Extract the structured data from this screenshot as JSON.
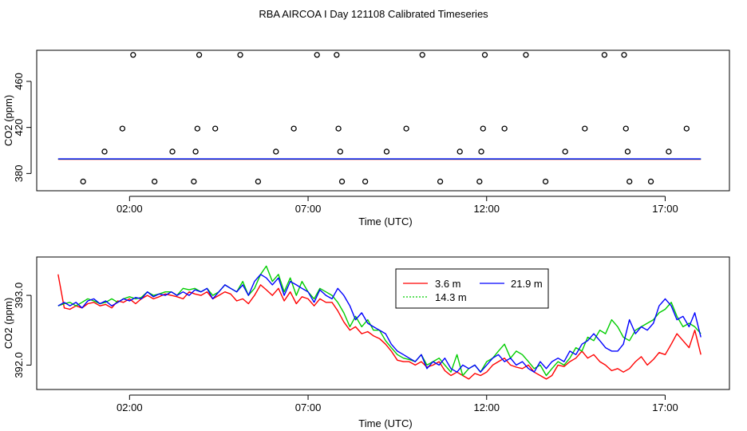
{
  "figure": {
    "title": "RBA AIRCOA I  Day 121108  Calibrated Timeseries"
  },
  "chart_data": [
    {
      "type": "scatter+line",
      "panel": "top",
      "xlabel": "Time (UTC)",
      "ylabel": "CO2 (ppm)",
      "x_unit": "hours UTC",
      "xlim": [
        -0.6,
        18.8
      ],
      "ylim": [
        365,
        487
      ],
      "xticks": [
        2,
        7,
        12,
        17
      ],
      "xtick_labels": [
        "02:00",
        "07:00",
        "12:00",
        "17:00"
      ],
      "yticks": [
        380,
        420,
        460
      ],
      "ytick_labels": [
        "380",
        "420",
        "460"
      ],
      "points": [
        [
          0.7,
          373
        ],
        [
          1.3,
          399
        ],
        [
          1.8,
          419
        ],
        [
          2.1,
          483
        ],
        [
          2.7,
          373
        ],
        [
          3.2,
          399
        ],
        [
          3.8,
          373
        ],
        [
          3.85,
          399
        ],
        [
          3.9,
          419
        ],
        [
          3.95,
          483
        ],
        [
          4.4,
          419
        ],
        [
          5.1,
          483
        ],
        [
          5.6,
          373
        ],
        [
          6.1,
          399
        ],
        [
          6.6,
          419
        ],
        [
          7.25,
          483
        ],
        [
          7.8,
          483
        ],
        [
          7.85,
          419
        ],
        [
          7.9,
          399
        ],
        [
          7.95,
          373
        ],
        [
          8.6,
          373
        ],
        [
          9.2,
          399
        ],
        [
          9.75,
          419
        ],
        [
          10.2,
          483
        ],
        [
          10.7,
          373
        ],
        [
          11.25,
          399
        ],
        [
          11.8,
          373
        ],
        [
          11.85,
          399
        ],
        [
          11.9,
          419
        ],
        [
          11.95,
          483
        ],
        [
          12.5,
          419
        ],
        [
          13.1,
          483
        ],
        [
          13.65,
          373
        ],
        [
          14.2,
          399
        ],
        [
          14.75,
          419
        ],
        [
          15.3,
          483
        ],
        [
          15.85,
          483
        ],
        [
          15.9,
          419
        ],
        [
          15.95,
          399
        ],
        [
          16.0,
          373
        ],
        [
          16.6,
          373
        ],
        [
          17.1,
          399
        ],
        [
          17.6,
          419
        ]
      ],
      "baseline_level": 392.5,
      "series": [
        {
          "name": "3.6 m",
          "color": "#ff0000"
        },
        {
          "name": "14.3 m",
          "color": "#00cd00"
        },
        {
          "name": "21.9 m",
          "color": "#0000ff"
        }
      ]
    },
    {
      "type": "line",
      "panel": "bottom",
      "xlabel": "Time (UTC)",
      "ylabel": "CO2 (ppm)",
      "x_unit": "hours UTC",
      "xlim": [
        -0.6,
        18.8
      ],
      "ylim": [
        391.65,
        393.55
      ],
      "xticks": [
        2,
        7,
        12,
        17
      ],
      "xtick_labels": [
        "02:00",
        "07:00",
        "12:00",
        "17:00"
      ],
      "yticks": [
        392.0,
        393.0
      ],
      "ytick_labels": [
        "392.0",
        "393.0"
      ],
      "legend": {
        "position": "top-center",
        "entries": [
          "3.6 m",
          "21.9 m",
          "14.3 m"
        ]
      },
      "x": [
        0.0,
        0.17,
        0.33,
        0.5,
        0.67,
        0.83,
        1.0,
        1.17,
        1.33,
        1.5,
        1.67,
        1.83,
        2.0,
        2.17,
        2.33,
        2.5,
        2.67,
        2.83,
        3.0,
        3.17,
        3.33,
        3.5,
        3.67,
        3.83,
        4.0,
        4.17,
        4.33,
        4.5,
        4.67,
        4.83,
        5.0,
        5.17,
        5.33,
        5.5,
        5.67,
        5.83,
        6.0,
        6.17,
        6.33,
        6.5,
        6.67,
        6.83,
        7.0,
        7.17,
        7.33,
        7.5,
        7.67,
        7.83,
        8.0,
        8.17,
        8.33,
        8.5,
        8.67,
        8.83,
        9.0,
        9.17,
        9.33,
        9.5,
        9.67,
        9.83,
        10.0,
        10.17,
        10.33,
        10.5,
        10.67,
        10.83,
        11.0,
        11.17,
        11.33,
        11.5,
        11.67,
        11.83,
        12.0,
        12.17,
        12.33,
        12.5,
        12.67,
        12.83,
        13.0,
        13.17,
        13.33,
        13.5,
        13.67,
        13.83,
        14.0,
        14.17,
        14.33,
        14.5,
        14.67,
        14.83,
        15.0,
        15.17,
        15.33,
        15.5,
        15.67,
        15.83,
        16.0,
        16.17,
        16.33,
        16.5,
        16.67,
        16.83,
        17.0,
        17.17,
        17.33,
        17.5,
        17.67,
        17.83,
        18.0
      ],
      "series": [
        {
          "name": "3.6 m",
          "color": "#ff0000",
          "values": [
            393.3,
            392.82,
            392.8,
            392.85,
            392.82,
            392.88,
            392.9,
            392.85,
            392.87,
            392.82,
            392.92,
            392.9,
            392.95,
            392.88,
            392.95,
            393.0,
            392.95,
            392.98,
            393.02,
            393.0,
            392.98,
            392.95,
            393.05,
            393.02,
            393.0,
            393.05,
            392.95,
            393.0,
            393.05,
            393.02,
            392.92,
            392.95,
            392.88,
            393.0,
            393.15,
            393.08,
            393.0,
            393.1,
            392.92,
            393.05,
            392.88,
            392.98,
            392.95,
            392.85,
            392.95,
            392.9,
            392.9,
            392.78,
            392.62,
            392.5,
            392.55,
            392.45,
            392.48,
            392.42,
            392.38,
            392.3,
            392.2,
            392.07,
            392.05,
            392.05,
            392.0,
            392.05,
            391.97,
            392.0,
            392.05,
            391.92,
            391.85,
            391.9,
            391.85,
            391.8,
            391.88,
            391.85,
            391.9,
            392.0,
            392.05,
            392.1,
            392.0,
            391.97,
            391.95,
            392.0,
            391.9,
            391.85,
            391.8,
            391.85,
            392.0,
            391.98,
            392.05,
            392.1,
            392.2,
            392.1,
            392.15,
            392.05,
            392.0,
            391.92,
            391.95,
            391.9,
            391.95,
            392.05,
            392.12,
            392.0,
            392.08,
            392.18,
            392.15,
            392.3,
            392.45,
            392.35,
            392.25,
            392.5,
            392.15
          ]
        },
        {
          "name": "14.3 m",
          "color": "#00cd00",
          "values": [
            392.85,
            392.88,
            392.9,
            392.85,
            392.9,
            392.95,
            392.92,
            392.88,
            392.9,
            392.95,
            392.9,
            392.95,
            392.98,
            392.95,
            392.97,
            393.05,
            393.0,
            393.02,
            393.05,
            393.05,
            393.0,
            393.1,
            393.08,
            393.1,
            393.05,
            393.1,
            393.0,
            393.05,
            393.15,
            393.1,
            393.05,
            393.2,
            393.0,
            393.1,
            393.3,
            393.42,
            393.2,
            393.3,
            393.05,
            393.25,
            393.0,
            393.2,
            393.05,
            392.95,
            393.1,
            393.05,
            393.0,
            392.9,
            392.75,
            392.55,
            392.7,
            392.55,
            392.65,
            392.5,
            392.5,
            392.35,
            392.25,
            392.15,
            392.1,
            392.08,
            392.05,
            392.15,
            392.0,
            392.05,
            392.1,
            392.0,
            391.9,
            392.15,
            391.85,
            391.95,
            392.0,
            391.9,
            392.05,
            392.1,
            392.2,
            392.3,
            392.1,
            392.2,
            392.15,
            392.05,
            391.95,
            392.0,
            391.85,
            391.95,
            392.05,
            392.0,
            392.1,
            392.25,
            392.2,
            392.4,
            392.35,
            392.5,
            392.45,
            392.65,
            392.55,
            392.4,
            392.35,
            392.5,
            392.55,
            392.6,
            392.65,
            392.75,
            392.8,
            392.9,
            392.7,
            392.55,
            392.6,
            392.55,
            392.45
          ]
        },
        {
          "name": "21.9 m",
          "color": "#0000ff",
          "values": [
            392.85,
            392.9,
            392.85,
            392.9,
            392.82,
            392.92,
            392.95,
            392.88,
            392.92,
            392.85,
            392.9,
            392.95,
            392.92,
            392.97,
            392.95,
            393.05,
            392.98,
            393.02,
            393.0,
            393.05,
            393.0,
            393.05,
            393.0,
            393.08,
            393.05,
            393.1,
            392.95,
            393.05,
            393.15,
            393.1,
            393.05,
            393.15,
            393.0,
            393.2,
            393.3,
            393.25,
            393.15,
            393.25,
            393.0,
            393.2,
            393.15,
            393.1,
            393.05,
            392.9,
            393.08,
            393.0,
            392.95,
            393.1,
            393.0,
            392.85,
            392.65,
            392.75,
            392.6,
            392.55,
            392.5,
            392.45,
            392.3,
            392.2,
            392.15,
            392.1,
            392.05,
            392.15,
            391.95,
            392.05,
            392.0,
            392.1,
            391.95,
            391.9,
            392.0,
            391.95,
            392.0,
            391.9,
            392.0,
            392.1,
            392.15,
            392.05,
            392.1,
            392.0,
            392.05,
            391.95,
            391.9,
            392.05,
            391.95,
            392.05,
            392.1,
            392.05,
            392.2,
            392.15,
            392.3,
            392.35,
            392.45,
            392.35,
            392.25,
            392.2,
            392.2,
            392.3,
            392.65,
            392.45,
            392.55,
            392.5,
            392.6,
            392.85,
            392.95,
            392.85,
            392.65,
            392.7,
            392.55,
            392.75,
            392.4
          ]
        }
      ]
    }
  ]
}
